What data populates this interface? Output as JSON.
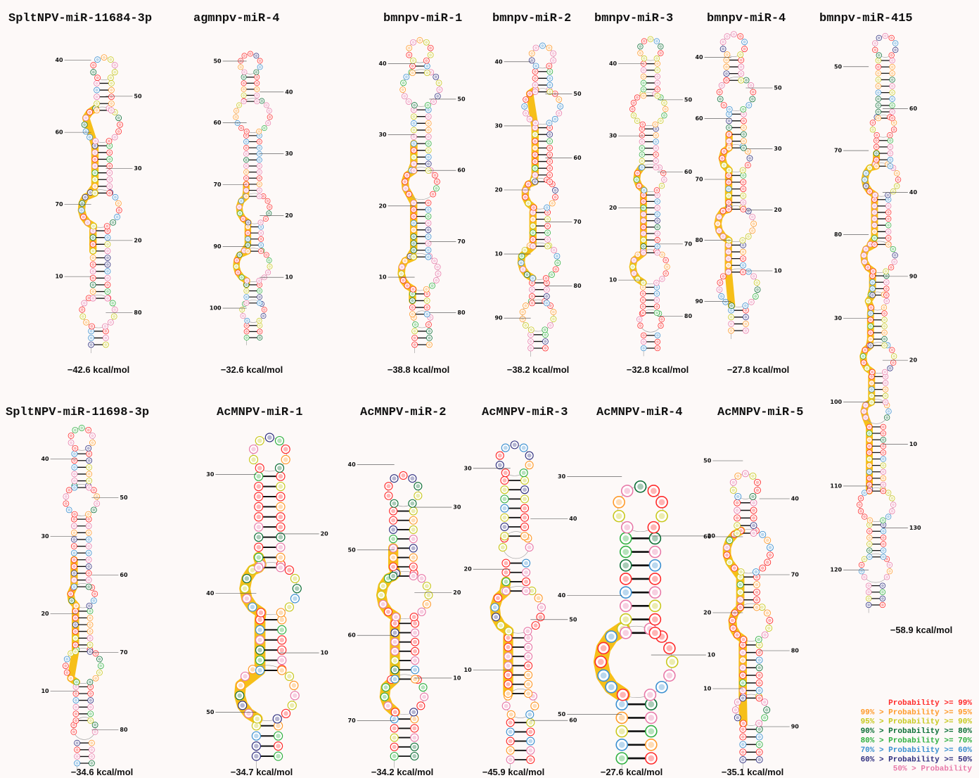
{
  "panels": [
    {
      "title": "SpltNPV-miR-11684-3p",
      "energy": "−42.6 kcal/mol",
      "labels": [
        "40",
        "50",
        "60",
        "30",
        "70",
        "20",
        "10",
        "80"
      ]
    },
    {
      "title": "agmnpv-miR-4",
      "energy": "−32.6 kcal/mol",
      "labels": [
        "50",
        "40",
        "60",
        "30",
        "70",
        "20",
        "90",
        "10",
        "100"
      ]
    },
    {
      "title": "bmnpv-miR-1",
      "energy": "−38.8 kcal/mol",
      "labels": [
        "40",
        "50",
        "30",
        "60",
        "20",
        "70",
        "10",
        "80"
      ]
    },
    {
      "title": "bmnpv-miR-2",
      "energy": "−38.2 kcal/mol",
      "labels": [
        "40",
        "50",
        "30",
        "60",
        "20",
        "70",
        "10",
        "80",
        "90"
      ]
    },
    {
      "title": "bmnpv-miR-3",
      "energy": "−32.8 kcal/mol",
      "labels": [
        "40",
        "50",
        "30",
        "60",
        "20",
        "70",
        "10",
        "80"
      ]
    },
    {
      "title": "bmnpv-miR-4",
      "energy": "−27.8 kcal/mol",
      "labels": [
        "40",
        "50",
        "60",
        "30",
        "70",
        "20",
        "80",
        "10",
        "90"
      ]
    },
    {
      "title": "bmnpv-miR-415",
      "energy": "−58.9 kcal/mol",
      "labels": [
        "50",
        "60",
        "70",
        "40",
        "80",
        "90",
        "30",
        "20",
        "100",
        "10",
        "110",
        "130",
        "120"
      ]
    },
    {
      "title": "SpltNPV-miR-11698-3p",
      "energy": "−34.6 kcal/mol",
      "labels": [
        "40",
        "50",
        "30",
        "60",
        "20",
        "70",
        "10",
        "80"
      ]
    },
    {
      "title": "AcMNPV-miR-1",
      "energy": "−34.7 kcal/mol",
      "labels": [
        "30",
        "20",
        "40",
        "10",
        "50"
      ]
    },
    {
      "title": "AcMNPV-miR-2",
      "energy": "−34.2 kcal/mol",
      "labels": [
        "40",
        "30",
        "50",
        "20",
        "60",
        "10",
        "70"
      ]
    },
    {
      "title": "AcMNPV-miR-3",
      "energy": "−45.9 kcal/mol",
      "labels": [
        "30",
        "40",
        "20",
        "50",
        "10",
        "60"
      ]
    },
    {
      "title": "AcMNPV-miR-4",
      "energy": "−27.6 kcal/mol",
      "labels": [
        "30",
        "20",
        "40",
        "10",
        "50"
      ]
    },
    {
      "title": "AcMNPV-miR-5",
      "energy": "−35.1 kcal/mol",
      "labels": [
        "50",
        "40",
        "60",
        "70",
        "20",
        "80",
        "10",
        "90"
      ]
    }
  ],
  "legend": [
    {
      "label": "Probability >= 99%",
      "color": "#ff2a2a"
    },
    {
      "label": "99% > Probability >= 95%",
      "color": "#ff9a2a"
    },
    {
      "label": "95% > Probability >= 90%",
      "color": "#c8c81e"
    },
    {
      "label": "90% > Probability >= 80%",
      "color": "#0b6e35"
    },
    {
      "label": "80% > Probability >= 70%",
      "color": "#2fb040"
    },
    {
      "label": "70% > Probability >= 60%",
      "color": "#3a8fd0"
    },
    {
      "label": "60% > Probability >= 50%",
      "color": "#2e2e7e"
    },
    {
      "label": "50% > Probability",
      "color": "#e879a8"
    }
  ]
}
